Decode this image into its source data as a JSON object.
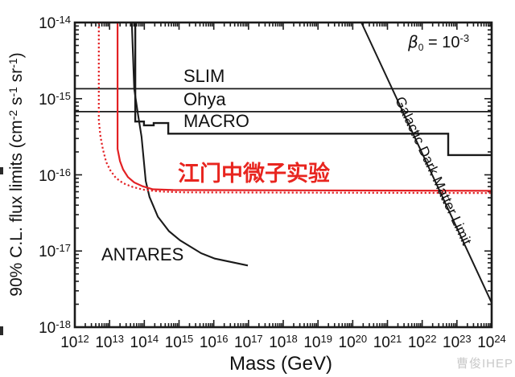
{
  "colors": {
    "line_black": "#1a1a1a",
    "curve_red": "#e32124",
    "text_red": "#e8251f",
    "watermark_gray": "#c9c9c9"
  },
  "labels": {
    "slim": "SLIM",
    "ohya": "Ohya",
    "macro": "MACRO",
    "antares": "ANTARES",
    "juno": "江门中微子实验",
    "gdm": "Galactic Dark Matter Limit",
    "mass": "Mass (GeV)"
  },
  "beta_annotation": {
    "symbol": "β",
    "subscript": "0",
    "equals": " = 10",
    "exponent": "-3"
  },
  "y_axis_title": {
    "prefix": "90% C.L. flux limits (cm",
    "sup1": "-2",
    "seg1": " s",
    "sup2": "-1",
    "seg2": " sr",
    "sup3": "-1",
    "suffix": ")"
  },
  "tick_base": "10",
  "watermark": "曹俊IHEP",
  "chart_data": {
    "type": "line",
    "title": "",
    "xlabel": "Mass (GeV)",
    "ylabel": "90% C.L. flux limits (cm^-2 s^-1 sr^-1)",
    "x_scale": "log",
    "y_scale": "log",
    "x_log_range": [
      12,
      24
    ],
    "y_log_range": [
      -18,
      -14
    ],
    "x_tick_exponents": [
      12,
      13,
      14,
      15,
      16,
      17,
      18,
      19,
      20,
      21,
      22,
      23,
      24
    ],
    "y_tick_exponents": [
      -14,
      -15,
      -16,
      -17,
      -18
    ],
    "grid": false,
    "legend": "labels-on-plot",
    "annotation": "beta_0 = 10^-3",
    "series": [
      {
        "name": "SLIM",
        "color": "#1a1a1a",
        "style": "solid",
        "stroke_width": 1.8,
        "points_log": [
          [
            12,
            -14.87
          ],
          [
            24,
            -14.87
          ]
        ]
      },
      {
        "name": "Ohya",
        "color": "#1a1a1a",
        "style": "solid",
        "stroke_width": 1.8,
        "points_log": [
          [
            12,
            -15.17
          ],
          [
            24,
            -15.17
          ]
        ]
      },
      {
        "name": "MACRO",
        "color": "#1a1a1a",
        "style": "solid",
        "stroke_width": 2.4,
        "points_log": [
          [
            13.74,
            -14.0
          ],
          [
            13.74,
            -15.3
          ],
          [
            13.99,
            -15.3
          ],
          [
            13.99,
            -15.35
          ],
          [
            14.27,
            -15.35
          ],
          [
            14.27,
            -15.32
          ],
          [
            14.69,
            -15.32
          ],
          [
            14.69,
            -15.46
          ],
          [
            22.75,
            -15.46
          ],
          [
            22.75,
            -15.74
          ],
          [
            24,
            -15.74
          ]
        ]
      },
      {
        "name": "ANTARES",
        "color": "#1a1a1a",
        "style": "solid",
        "stroke_width": 2.1,
        "points_log": [
          [
            13.64,
            -14.0
          ],
          [
            13.71,
            -14.87
          ],
          [
            13.81,
            -15.18
          ],
          [
            13.92,
            -15.5
          ],
          [
            14.04,
            -16.08
          ],
          [
            14.15,
            -16.29
          ],
          [
            14.39,
            -16.55
          ],
          [
            14.71,
            -16.74
          ],
          [
            15.03,
            -16.86
          ],
          [
            15.64,
            -17.03
          ],
          [
            16.03,
            -17.1
          ],
          [
            16.98,
            -17.19
          ]
        ]
      },
      {
        "name": "JUNO expected (solid)",
        "color": "#e32124",
        "style": "solid",
        "stroke_width": 2.2,
        "points_log": [
          [
            13.23,
            -14.0
          ],
          [
            13.23,
            -15.66
          ],
          [
            13.3,
            -15.82
          ],
          [
            13.39,
            -15.93
          ],
          [
            13.53,
            -16.03
          ],
          [
            13.71,
            -16.1
          ],
          [
            13.95,
            -16.15
          ],
          [
            14.25,
            -16.19
          ],
          [
            14.83,
            -16.2
          ],
          [
            24,
            -16.21
          ]
        ]
      },
      {
        "name": "JUNO expected (dotted)",
        "color": "#e32124",
        "style": "dotted",
        "stroke_width": 2.2,
        "points_log": [
          [
            12.69,
            -14.0
          ],
          [
            12.69,
            -15.29
          ],
          [
            12.74,
            -15.5
          ],
          [
            12.81,
            -15.67
          ],
          [
            12.9,
            -15.83
          ],
          [
            13.02,
            -15.94
          ],
          [
            13.18,
            -16.04
          ],
          [
            13.39,
            -16.11
          ],
          [
            13.67,
            -16.16
          ],
          [
            14.02,
            -16.2
          ],
          [
            14.48,
            -16.22
          ],
          [
            15.17,
            -16.23
          ],
          [
            24,
            -16.24
          ]
        ]
      },
      {
        "name": "Galactic Dark Matter Limit",
        "color": "#1a1a1a",
        "style": "solid",
        "stroke_width": 2.0,
        "points_log": [
          [
            20.25,
            -14.0
          ],
          [
            24,
            -17.68
          ]
        ]
      }
    ]
  }
}
